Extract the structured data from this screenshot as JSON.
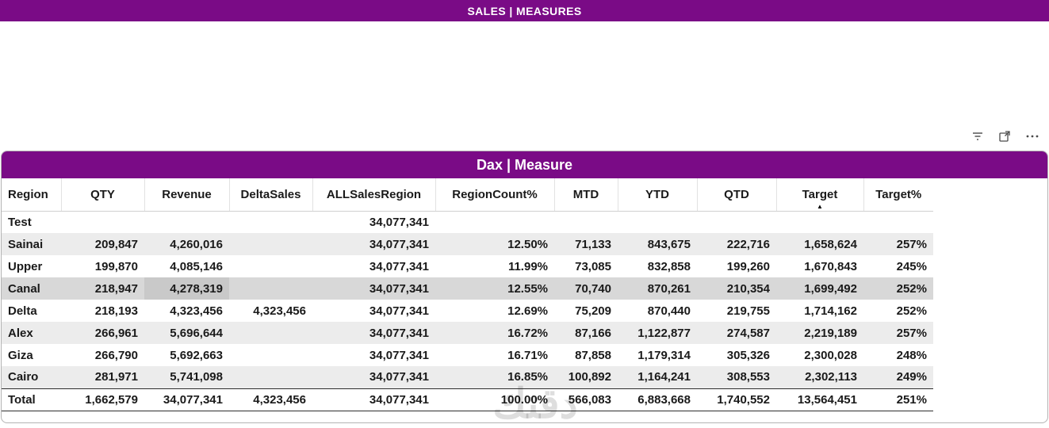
{
  "top_bar": {
    "title": "SALES | MEASURES"
  },
  "visual_toolbar": {
    "icons": [
      "filter-icon",
      "focus-mode-icon",
      "more-options-icon"
    ]
  },
  "card": {
    "title": "Dax | Measure"
  },
  "colors": {
    "accent_purple": "#7a0b86",
    "selected_row": "#d8d8d8"
  },
  "sort": {
    "column": "Target",
    "direction": "asc",
    "glyph": "▲"
  },
  "table": {
    "columns": [
      {
        "label": "Region"
      },
      {
        "label": "QTY"
      },
      {
        "label": "Revenue"
      },
      {
        "label": "DeltaSales"
      },
      {
        "label": "ALLSalesRegion"
      },
      {
        "label": "RegionCount%"
      },
      {
        "label": "MTD"
      },
      {
        "label": "YTD"
      },
      {
        "label": "QTD"
      },
      {
        "label": "Target",
        "sorted": true
      },
      {
        "label": "Target%"
      }
    ],
    "rows": [
      {
        "region": "Test",
        "cells": [
          "",
          "",
          "",
          "34,077,341",
          "",
          "",
          "",
          "",
          "",
          ""
        ]
      },
      {
        "region": "Sainai",
        "cells": [
          "209,847",
          "4,260,016",
          "",
          "34,077,341",
          "12.50%",
          "71,133",
          "843,675",
          "222,716",
          "1,658,624",
          "257%"
        ]
      },
      {
        "region": "Upper",
        "cells": [
          "199,870",
          "4,085,146",
          "",
          "34,077,341",
          "11.99%",
          "73,085",
          "832,858",
          "199,260",
          "1,670,843",
          "245%"
        ]
      },
      {
        "region": "Canal",
        "cells": [
          "218,947",
          "4,278,319",
          "",
          "34,077,341",
          "12.55%",
          "70,740",
          "870,261",
          "210,354",
          "1,699,492",
          "252%"
        ],
        "selected": true,
        "highlight_cell": 1
      },
      {
        "region": "Delta",
        "cells": [
          "218,193",
          "4,323,456",
          "4,323,456",
          "34,077,341",
          "12.69%",
          "75,209",
          "870,440",
          "219,755",
          "1,714,162",
          "252%"
        ]
      },
      {
        "region": "Alex",
        "cells": [
          "266,961",
          "5,696,644",
          "",
          "34,077,341",
          "16.72%",
          "87,166",
          "1,122,877",
          "274,587",
          "2,219,189",
          "257%"
        ]
      },
      {
        "region": "Giza",
        "cells": [
          "266,790",
          "5,692,663",
          "",
          "34,077,341",
          "16.71%",
          "87,858",
          "1,179,314",
          "305,326",
          "2,300,028",
          "248%"
        ]
      },
      {
        "region": "Cairo",
        "cells": [
          "281,971",
          "5,741,098",
          "",
          "34,077,341",
          "16.85%",
          "100,892",
          "1,164,241",
          "308,553",
          "2,302,113",
          "249%"
        ]
      }
    ],
    "total": {
      "region": "Total",
      "cells": [
        "1,662,579",
        "34,077,341",
        "4,323,456",
        "34,077,341",
        "100.00%",
        "566,083",
        "6,883,668",
        "1,740,552",
        "13,564,451",
        "251%"
      ]
    }
  },
  "watermark": {
    "text": "دقتك"
  }
}
